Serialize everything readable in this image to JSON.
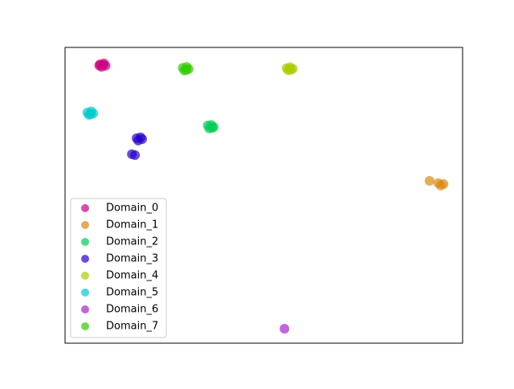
{
  "chart_data": {
    "type": "scatter",
    "xlim": [
      0,
      100
    ],
    "ylim": [
      0,
      100
    ],
    "legend": "lower left",
    "series": [
      {
        "name": "Domain_0",
        "color": "#cc0080",
        "x": [
          8.8,
          9.8,
          10.2,
          9.2,
          9.6,
          8.6
        ],
        "y": [
          94.3,
          94.6,
          93.8,
          93.4,
          94.1,
          93.9
        ]
      },
      {
        "name": "Domain_1",
        "color": "#d98a14",
        "x": [
          91.7,
          93.9,
          94.5,
          95.2
        ],
        "y": [
          54.9,
          54.1,
          53.3,
          53.8
        ]
      },
      {
        "name": "Domain_2",
        "color": "#00cc55",
        "x": [
          35.9,
          36.8,
          37.4,
          36.3,
          37.0
        ],
        "y": [
          73.6,
          73.8,
          73.1,
          72.6,
          72.8
        ]
      },
      {
        "name": "Domain_3",
        "color": "#2a00cc",
        "x": [
          18.0,
          19.0,
          19.4,
          18.4,
          16.8,
          17.6
        ],
        "y": [
          69.3,
          69.6,
          69.0,
          68.5,
          63.9,
          63.6
        ]
      },
      {
        "name": "Domain_4",
        "color": "#a8cc00",
        "x": [
          55.7,
          56.6,
          57.3,
          56.1,
          56.8
        ],
        "y": [
          93.0,
          93.3,
          92.8,
          92.3,
          92.4
        ]
      },
      {
        "name": "Domain_5",
        "color": "#00cccc",
        "x": [
          5.6,
          6.6,
          7.1,
          6.0,
          6.5
        ],
        "y": [
          78.0,
          78.4,
          77.7,
          77.2,
          77.4
        ]
      },
      {
        "name": "Domain_6",
        "color": "#aa22cc",
        "x": [
          55.2
        ],
        "y": [
          4.9
        ]
      },
      {
        "name": "Domain_7",
        "color": "#33cc00",
        "x": [
          29.6,
          30.6,
          31.1,
          30.0,
          30.5
        ],
        "y": [
          93.1,
          93.4,
          92.7,
          92.2,
          92.4
        ]
      }
    ]
  }
}
